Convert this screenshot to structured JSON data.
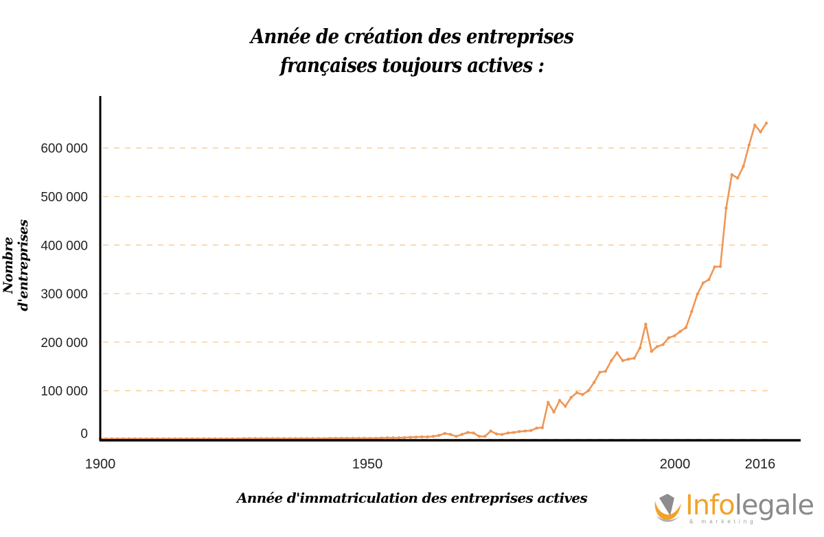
{
  "chart_data": {
    "type": "line",
    "title": "Année de création des entreprises françaises toujours actives :",
    "title_lines": [
      "Année de création des entreprises",
      "françaises toujours actives :"
    ],
    "xlabel": "Année d'immatriculation des entreprises actives",
    "ylabel": "Nombre d'entreprises",
    "xlim": [
      1900,
      2016
    ],
    "ylim": [
      0,
      660000
    ],
    "x_ticks": [
      "1900",
      "1950",
      "2000",
      "2016"
    ],
    "y_ticks": [
      {
        "value": 0,
        "label": "0"
      },
      {
        "value": 100000,
        "label": "100 000"
      },
      {
        "value": 200000,
        "label": "200 000"
      },
      {
        "value": 300000,
        "label": "300 000"
      },
      {
        "value": 400000,
        "label": "400 000"
      },
      {
        "value": 500000,
        "label": "500 000"
      },
      {
        "value": 600000,
        "label": "600 000"
      }
    ],
    "grid": "horizontal dashed",
    "colors": {
      "line": "#ef9655",
      "grid": "#f9c892",
      "axis": "#000000"
    },
    "x_start": 1900,
    "values": [
      1000,
      1000,
      1000,
      1000,
      1000,
      1000,
      1000,
      1000,
      1000,
      1000,
      1000,
      1000,
      1000,
      1000,
      1000,
      1000,
      1000,
      1000,
      1000,
      1000,
      1000,
      1000,
      1000,
      1000,
      1000,
      1500,
      1500,
      1500,
      1500,
      1500,
      1500,
      1500,
      1500,
      1500,
      1500,
      1500,
      1500,
      1500,
      1500,
      1500,
      2000,
      2000,
      2000,
      2000,
      2000,
      2000,
      2000,
      2000,
      2000,
      2500,
      3000,
      3000,
      3000,
      3500,
      4000,
      4500,
      5000,
      5000,
      6000,
      8000,
      12000,
      10000,
      6000,
      10000,
      14000,
      13000,
      6000,
      6000,
      17000,
      11000,
      10000,
      13000,
      14000,
      16000,
      17000,
      18000,
      23000,
      24000,
      76000,
      56000,
      80000,
      68000,
      86000,
      96000,
      92000,
      100000,
      117000,
      138000,
      140000,
      162000,
      178000,
      162000,
      165000,
      167000,
      188000,
      237000,
      181000,
      191000,
      195000,
      209000,
      213000,
      222000,
      230000,
      263000,
      299000,
      322000,
      329000,
      355000,
      356000,
      476000,
      545000,
      538000,
      562000,
      606000,
      647000,
      633000,
      651000
    ]
  },
  "logo": {
    "brand_part1": "Info",
    "brand_part2": "legale",
    "tagline": "& marketing"
  }
}
